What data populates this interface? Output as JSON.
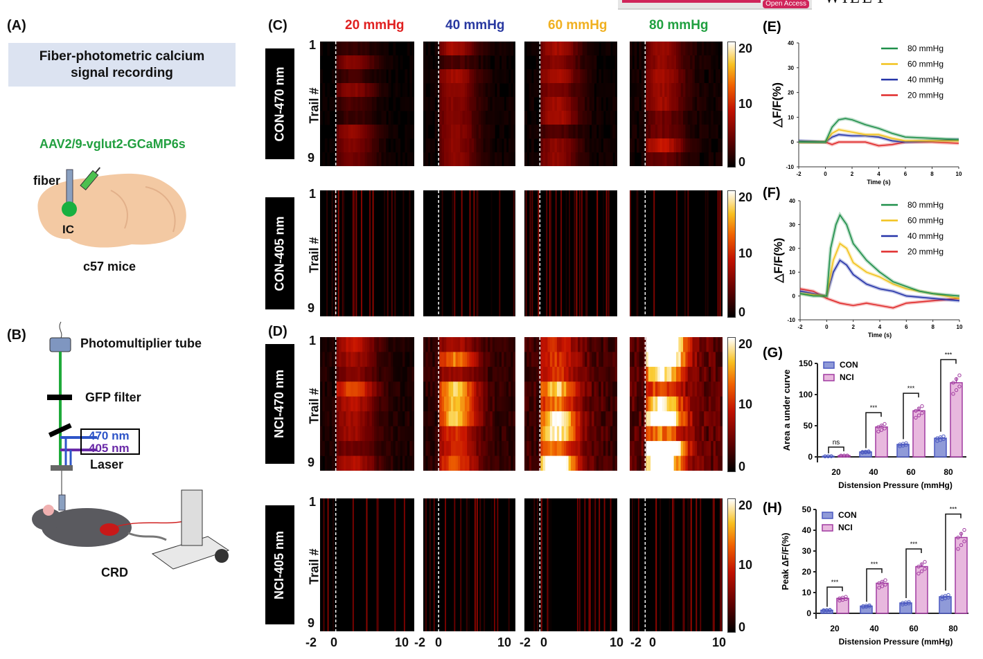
{
  "header": {
    "journal_badge": "Open Access",
    "publisher": "WILEY"
  },
  "panelA": {
    "label": "(A)",
    "title_line1": "Fiber-photometric calcium",
    "title_line2": "signal recording",
    "virus": "AAV2/9-vglut2-GCaMP6s",
    "fiber": "fiber",
    "region": "IC",
    "mice": "c57 mice"
  },
  "panelB": {
    "label": "(B)",
    "pmt": "Photomultiplier tube",
    "filter": "GFP filter",
    "wl1": "470 nm",
    "wl2": "405 nm",
    "laser": "Laser",
    "crd": "CRD"
  },
  "panelC": {
    "label": "(C)"
  },
  "panelD": {
    "label": "(D)"
  },
  "columns": [
    {
      "label": "20 mmHg",
      "color": "#e02020"
    },
    {
      "label": "40 mmHg",
      "color": "#2838a0"
    },
    {
      "label": "60 mmHg",
      "color": "#f0b020"
    },
    {
      "label": "80 mmHg",
      "color": "#20a040"
    }
  ],
  "heatmap_rows": [
    {
      "name": "CON-470 nm",
      "ylabel": "Trail #",
      "first": "1",
      "last": "9",
      "intensity": [
        0.25,
        0.3,
        0.3,
        0.35
      ]
    },
    {
      "name": "CON-405 nm",
      "ylabel": "Trail #",
      "first": "1",
      "last": "9",
      "intensity": [
        0.05,
        0.05,
        0.05,
        0.05
      ]
    },
    {
      "name": "NCI-470 nm",
      "ylabel": "Trail #",
      "first": "1",
      "last": "9",
      "intensity": [
        0.45,
        0.6,
        0.8,
        1.0
      ]
    },
    {
      "name": "NCI-405 nm",
      "ylabel": "Trail #",
      "first": "1",
      "last": "9",
      "intensity": [
        0.05,
        0.05,
        0.05,
        0.05
      ]
    }
  ],
  "colorbar": {
    "ticks": [
      "20",
      "10",
      "0"
    ]
  },
  "xticks": [
    "-2",
    "0",
    "10",
    "-2",
    "0",
    "10",
    "-2",
    "0",
    "10",
    "-2",
    "0",
    "10"
  ],
  "chart_data": [
    {
      "panel": "(E)",
      "type": "line",
      "xlabel": "Time (s)",
      "ylabel": "△F/F(%)",
      "xlim": [
        -2,
        10
      ],
      "ylim": [
        -10,
        40
      ],
      "xticks": [
        -2,
        0,
        2,
        4,
        6,
        8,
        10
      ],
      "yticks": [
        -10,
        0,
        10,
        20,
        30,
        40
      ],
      "legend": "top-right",
      "series": [
        {
          "name": "80 mmHg",
          "color": "#1f8f4a",
          "points": [
            [
              -2,
              0
            ],
            [
              -1,
              0
            ],
            [
              0,
              0
            ],
            [
              0.5,
              6
            ],
            [
              1,
              9
            ],
            [
              1.5,
              9.5
            ],
            [
              2,
              9
            ],
            [
              3,
              7
            ],
            [
              4,
              5.5
            ],
            [
              5,
              3.5
            ],
            [
              6,
              2
            ],
            [
              8,
              1.5
            ],
            [
              10,
              1
            ]
          ]
        },
        {
          "name": "60 mmHg",
          "color": "#f2c21b",
          "points": [
            [
              -2,
              0
            ],
            [
              0,
              0
            ],
            [
              0.5,
              3.5
            ],
            [
              1,
              5
            ],
            [
              2,
              4
            ],
            [
              3,
              3
            ],
            [
              4,
              3
            ],
            [
              5,
              1.5
            ],
            [
              6,
              0.5
            ],
            [
              8,
              0.5
            ],
            [
              10,
              0.5
            ]
          ]
        },
        {
          "name": "40 mmHg",
          "color": "#2433a8",
          "points": [
            [
              -2,
              0.5
            ],
            [
              0,
              0
            ],
            [
              0.5,
              2
            ],
            [
              1,
              3
            ],
            [
              2,
              2.5
            ],
            [
              3,
              2.5
            ],
            [
              4,
              2
            ],
            [
              5,
              0.5
            ],
            [
              6,
              0
            ],
            [
              8,
              0.5
            ],
            [
              10,
              1
            ]
          ]
        },
        {
          "name": "20 mmHg",
          "color": "#e02a2a",
          "points": [
            [
              -2,
              0
            ],
            [
              0,
              0
            ],
            [
              0.5,
              -1
            ],
            [
              1,
              0
            ],
            [
              2,
              0
            ],
            [
              3,
              0
            ],
            [
              4,
              -1.5
            ],
            [
              5,
              -1
            ],
            [
              6,
              0
            ],
            [
              8,
              0
            ],
            [
              10,
              -0.5
            ]
          ]
        }
      ]
    },
    {
      "panel": "(F)",
      "type": "line",
      "xlabel": "Time (s)",
      "ylabel": "△F/F(%)",
      "xlim": [
        -2,
        10
      ],
      "ylim": [
        -10,
        40
      ],
      "xticks": [
        -2,
        0,
        2,
        4,
        6,
        8,
        10
      ],
      "yticks": [
        -10,
        0,
        10,
        20,
        30,
        40
      ],
      "legend": "top-right",
      "series": [
        {
          "name": "80 mmHg",
          "color": "#1f8f4a",
          "points": [
            [
              -2,
              1
            ],
            [
              -1,
              0
            ],
            [
              0,
              0
            ],
            [
              0.3,
              20
            ],
            [
              0.7,
              30
            ],
            [
              1,
              34
            ],
            [
              1.5,
              30
            ],
            [
              2,
              22
            ],
            [
              3,
              15
            ],
            [
              4,
              10
            ],
            [
              5,
              6
            ],
            [
              6,
              4
            ],
            [
              7,
              2
            ],
            [
              8,
              1
            ],
            [
              10,
              0
            ]
          ]
        },
        {
          "name": "60 mmHg",
          "color": "#f2c21b",
          "points": [
            [
              -2,
              1
            ],
            [
              0,
              0
            ],
            [
              0.5,
              15
            ],
            [
              1,
              22
            ],
            [
              1.5,
              20
            ],
            [
              2,
              14
            ],
            [
              3,
              10
            ],
            [
              4,
              8
            ],
            [
              5,
              5
            ],
            [
              6,
              3
            ],
            [
              8,
              1
            ],
            [
              10,
              -1
            ]
          ]
        },
        {
          "name": "40 mmHg",
          "color": "#2433a8",
          "points": [
            [
              -2,
              2
            ],
            [
              0,
              0
            ],
            [
              0.5,
              10
            ],
            [
              1,
              15
            ],
            [
              1.5,
              13
            ],
            [
              2,
              9
            ],
            [
              3,
              5
            ],
            [
              4,
              3
            ],
            [
              5,
              2
            ],
            [
              6,
              0
            ],
            [
              8,
              -1
            ],
            [
              10,
              -2
            ]
          ]
        },
        {
          "name": "20 mmHg",
          "color": "#e02a2a",
          "points": [
            [
              -2,
              3
            ],
            [
              -1,
              2
            ],
            [
              0,
              -1
            ],
            [
              1,
              -3
            ],
            [
              2,
              -4
            ],
            [
              3,
              -3
            ],
            [
              4,
              -4
            ],
            [
              5,
              -5
            ],
            [
              6,
              -3
            ],
            [
              8,
              -2
            ],
            [
              10,
              -1
            ]
          ]
        }
      ]
    },
    {
      "panel": "(G)",
      "type": "bar",
      "categories": [
        "20",
        "40",
        "60",
        "80"
      ],
      "xlabel": "Distension Pressure (mmHg)",
      "ylabel": "Area a under curve",
      "ylim": [
        0,
        150
      ],
      "yticks": [
        0,
        50,
        100,
        150
      ],
      "legend": "top-left",
      "series": [
        {
          "name": "CON",
          "color": "#8f9ad8",
          "values": [
            1,
            8,
            20,
            30
          ]
        },
        {
          "name": "NCI",
          "color": "#e8b8de",
          "values": [
            2,
            48,
            74,
            119
          ]
        }
      ],
      "significance": [
        "ns",
        "***",
        "***",
        "***"
      ]
    },
    {
      "panel": "(H)",
      "type": "bar",
      "categories": [
        "20",
        "40",
        "60",
        "80"
      ],
      "xlabel": "Distension Pressure (mmHg)",
      "ylabel": "Peak ΔF/F(%)",
      "ylim": [
        0,
        50
      ],
      "yticks": [
        0,
        10,
        20,
        30,
        40,
        50
      ],
      "legend": "top-left",
      "series": [
        {
          "name": "CON",
          "color": "#8f9ad8",
          "values": [
            1.5,
            3.5,
            5,
            8
          ]
        },
        {
          "name": "NCI",
          "color": "#e8b8de",
          "values": [
            7.2,
            14.5,
            22.5,
            36.5
          ]
        }
      ],
      "significance": [
        "***",
        "***",
        "***",
        "***"
      ]
    }
  ]
}
